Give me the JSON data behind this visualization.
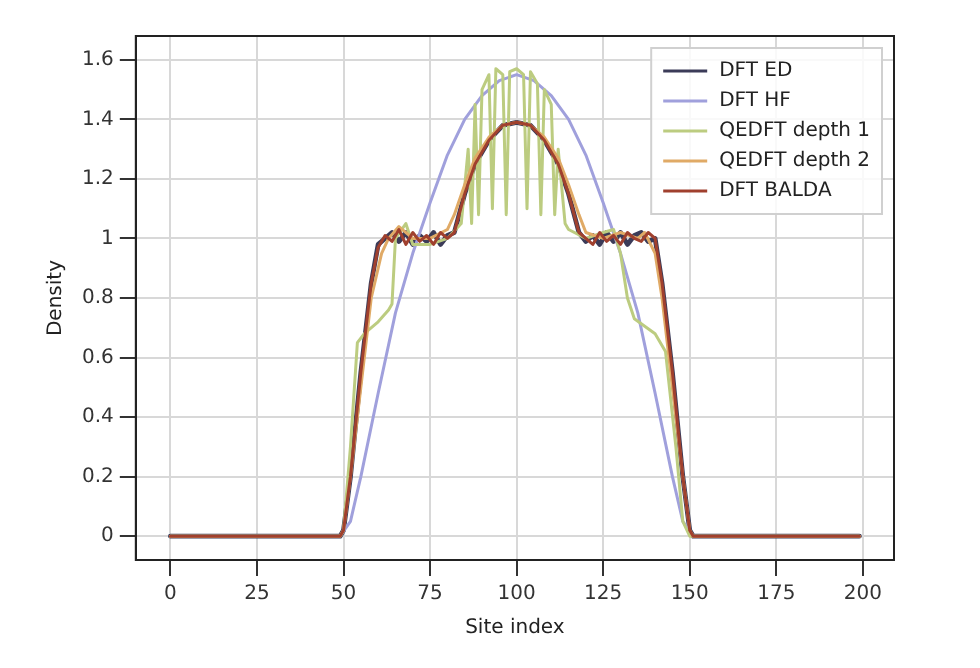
{
  "chart_data": {
    "type": "line",
    "xlabel": "Site index",
    "ylabel": "Density",
    "xlim": [
      -10,
      209
    ],
    "ylim": [
      -0.08,
      1.68
    ],
    "xticks": [
      0,
      25,
      50,
      75,
      100,
      125,
      150,
      175,
      200
    ],
    "yticks": [
      0,
      0.2,
      0.4,
      0.6,
      0.8,
      1.0,
      1.2,
      1.4,
      1.6
    ],
    "grid": true,
    "legend": "top right",
    "marker": "none",
    "line_style": "solid",
    "series": [
      {
        "name": "DFT ED",
        "color": "#3b3b58",
        "x": [
          0,
          49,
          50,
          52,
          55,
          58,
          60,
          62,
          64,
          66,
          68,
          70,
          72,
          74,
          76,
          78,
          80,
          82,
          85,
          88,
          92,
          96,
          100,
          104,
          108,
          112,
          115,
          118,
          120,
          122,
          124,
          126,
          128,
          130,
          132,
          134,
          136,
          138,
          140,
          142,
          145,
          148,
          150,
          151,
          199
        ],
        "values": [
          0,
          0,
          0.02,
          0.2,
          0.55,
          0.85,
          0.98,
          1.0,
          1.02,
          0.99,
          1.02,
          0.98,
          1.01,
          0.99,
          1.02,
          0.98,
          1.01,
          1.02,
          1.15,
          1.25,
          1.33,
          1.38,
          1.39,
          1.38,
          1.33,
          1.25,
          1.15,
          1.02,
          0.99,
          1.01,
          0.98,
          1.02,
          0.99,
          1.02,
          0.98,
          1.01,
          1.02,
          0.99,
          1.0,
          0.85,
          0.55,
          0.2,
          0.02,
          0,
          0
        ]
      },
      {
        "name": "DFT HF",
        "color": "#a0a0dc",
        "x": [
          0,
          49,
          52,
          55,
          60,
          65,
          70,
          75,
          80,
          85,
          90,
          95,
          100,
          105,
          110,
          115,
          120,
          125,
          130,
          135,
          140,
          145,
          148,
          151,
          199
        ],
        "values": [
          0,
          0,
          0.05,
          0.2,
          0.48,
          0.75,
          0.95,
          1.12,
          1.28,
          1.4,
          1.48,
          1.53,
          1.55,
          1.53,
          1.48,
          1.4,
          1.28,
          1.12,
          0.95,
          0.75,
          0.48,
          0.2,
          0.05,
          0,
          0
        ]
      },
      {
        "name": "QEDFT depth 1",
        "color": "#bccc80",
        "x": [
          0,
          49,
          50,
          52,
          54,
          56,
          60,
          63,
          64,
          65,
          68,
          70,
          75,
          80,
          84,
          86,
          87,
          88,
          89,
          90,
          92,
          93,
          94,
          96,
          97,
          98,
          100,
          102,
          103,
          104,
          106,
          107,
          108,
          110,
          111,
          112,
          114,
          115,
          120,
          125,
          128,
          130,
          132,
          134,
          140,
          143,
          146,
          148,
          150,
          199
        ],
        "values": [
          0,
          0,
          0.02,
          0.3,
          0.65,
          0.68,
          0.72,
          0.76,
          0.78,
          1.0,
          1.05,
          0.98,
          0.98,
          1.0,
          1.05,
          1.3,
          1.05,
          1.45,
          1.08,
          1.5,
          1.55,
          1.1,
          1.57,
          1.55,
          1.08,
          1.56,
          1.57,
          1.55,
          1.1,
          1.56,
          1.52,
          1.08,
          1.5,
          1.45,
          1.08,
          1.3,
          1.05,
          1.03,
          1.0,
          1.02,
          1.03,
          0.95,
          0.8,
          0.73,
          0.68,
          0.62,
          0.3,
          0.05,
          0,
          0
        ]
      },
      {
        "name": "QEDFT depth 2",
        "color": "#e0aa66",
        "x": [
          0,
          49,
          50,
          52,
          55,
          58,
          61,
          63,
          66,
          70,
          75,
          80,
          82,
          85,
          88,
          92,
          96,
          100,
          104,
          108,
          112,
          115,
          118,
          120,
          125,
          130,
          135,
          137,
          140,
          142,
          145,
          148,
          150,
          151,
          199
        ],
        "values": [
          0,
          0,
          0.02,
          0.2,
          0.5,
          0.8,
          0.95,
          1.0,
          1.04,
          1.0,
          1.0,
          1.03,
          1.08,
          1.18,
          1.27,
          1.34,
          1.38,
          1.39,
          1.38,
          1.34,
          1.27,
          1.18,
          1.08,
          1.02,
          1.0,
          1.02,
          1.0,
          1.02,
          0.95,
          0.8,
          0.5,
          0.2,
          0.02,
          0,
          0
        ]
      },
      {
        "name": "DFT BALDA",
        "color": "#a0402e",
        "x": [
          0,
          49,
          50,
          52,
          55,
          58,
          60,
          62,
          64,
          66,
          68,
          70,
          72,
          74,
          76,
          78,
          80,
          82,
          85,
          88,
          92,
          96,
          100,
          104,
          108,
          112,
          115,
          118,
          120,
          122,
          124,
          126,
          128,
          130,
          132,
          134,
          136,
          138,
          140,
          142,
          145,
          148,
          150,
          151,
          199
        ],
        "values": [
          0,
          0,
          0.02,
          0.2,
          0.55,
          0.85,
          0.97,
          1.01,
          0.99,
          1.03,
          0.98,
          1.02,
          0.99,
          1.01,
          0.98,
          1.02,
          1.0,
          1.02,
          1.15,
          1.25,
          1.33,
          1.38,
          1.39,
          1.38,
          1.33,
          1.25,
          1.15,
          1.02,
          1.0,
          0.98,
          1.02,
          0.99,
          1.01,
          0.98,
          1.02,
          1.0,
          0.99,
          1.02,
          1.0,
          0.85,
          0.55,
          0.2,
          0.02,
          0,
          0
        ]
      }
    ]
  }
}
